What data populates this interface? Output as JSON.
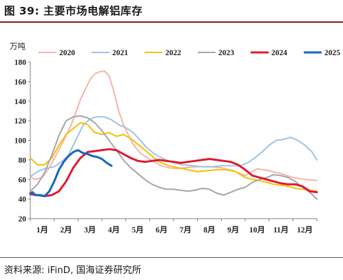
{
  "figure": {
    "title": "图 39:  主要市场电解铝库存",
    "source": "资料来源: iFinD, 国海证券研究所"
  },
  "chart_data": {
    "type": "line",
    "unit_label": "万吨",
    "ylim": [
      20,
      180
    ],
    "yticks": [
      20,
      40,
      60,
      80,
      100,
      120,
      140,
      160,
      180
    ],
    "months": [
      "1月",
      "2月",
      "3月",
      "4月",
      "5月",
      "6月",
      "7月",
      "8月",
      "9月",
      "10月",
      "11月",
      "12月"
    ],
    "xlim": [
      1,
      13
    ],
    "grid": false,
    "legend_position": "top",
    "series": [
      {
        "name": "2020",
        "color": "#f4b4a6",
        "width": 2,
        "x": [
          1,
          1.2,
          1.5,
          1.8,
          2.1,
          2.4,
          2.7,
          2.9,
          3.1,
          3.3,
          3.5,
          3.7,
          3.9,
          4.1,
          4.3,
          4.5,
          4.7,
          4.9,
          5.1,
          5.3,
          5.6,
          5.9,
          6.2,
          6.5,
          6.8,
          7.1,
          7.5,
          8.0,
          8.5,
          9.0,
          9.5,
          10.0,
          10.5,
          11.0,
          11.5,
          12.0,
          12.5,
          13.0
        ],
        "y": [
          63,
          60,
          62,
          72,
          86,
          100,
          115,
          128,
          142,
          152,
          162,
          168,
          170,
          171,
          166,
          150,
          130,
          116,
          106,
          96,
          87,
          82,
          78,
          74,
          72,
          71,
          72,
          73,
          73,
          72,
          69,
          64,
          71,
          69,
          66,
          62,
          60,
          59
        ]
      },
      {
        "name": "2021",
        "color": "#9dc3e6",
        "width": 2,
        "x": [
          1,
          1.3,
          1.6,
          2.0,
          2.3,
          2.6,
          2.9,
          3.2,
          3.5,
          3.8,
          4.1,
          4.4,
          4.7,
          5.0,
          5.3,
          5.6,
          5.9,
          6.2,
          6.6,
          7.0,
          7.4,
          7.8,
          8.2,
          8.6,
          9.0,
          9.4,
          9.8,
          10.1,
          10.4,
          10.7,
          11.0,
          11.3,
          11.6,
          11.9,
          12.2,
          12.5,
          12.8,
          13.0
        ],
        "y": [
          63,
          68,
          71,
          73,
          78,
          85,
          100,
          115,
          122,
          124,
          124,
          121,
          116,
          113,
          108,
          100,
          92,
          86,
          81,
          77,
          75,
          74,
          73,
          73,
          74,
          74,
          74,
          77,
          82,
          88,
          95,
          100,
          101,
          103,
          100,
          95,
          88,
          80
        ]
      },
      {
        "name": "2022",
        "color": "#f5c000",
        "width": 2,
        "x": [
          1,
          1.3,
          1.6,
          1.9,
          2.2,
          2.5,
          2.8,
          3.1,
          3.4,
          3.7,
          4.0,
          4.3,
          4.6,
          4.9,
          5.2,
          5.5,
          5.8,
          6.1,
          6.4,
          6.8,
          7.2,
          7.6,
          8.0,
          8.4,
          8.8,
          9.2,
          9.6,
          10.0,
          10.3,
          10.6,
          10.9,
          11.2,
          11.5,
          11.8,
          12.1,
          12.4,
          12.7,
          13.0
        ],
        "y": [
          82,
          75,
          75,
          82,
          95,
          106,
          112,
          118,
          116,
          108,
          106,
          108,
          104,
          106,
          102,
          96,
          90,
          84,
          78,
          74,
          72,
          70,
          68,
          69,
          70,
          70,
          68,
          62,
          60,
          59,
          57,
          55,
          54,
          53,
          51,
          50,
          49,
          48
        ]
      },
      {
        "name": "2023",
        "color": "#a6a6a6",
        "width": 2,
        "x": [
          1,
          1.3,
          1.6,
          1.9,
          2.2,
          2.5,
          2.8,
          3.1,
          3.4,
          3.7,
          4.0,
          4.3,
          4.6,
          4.9,
          5.2,
          5.5,
          5.8,
          6.1,
          6.4,
          6.7,
          7.0,
          7.3,
          7.6,
          7.9,
          8.2,
          8.5,
          8.8,
          9.1,
          9.4,
          9.7,
          10.0,
          10.3,
          10.6,
          10.9,
          11.2,
          11.5,
          11.8,
          12.1,
          12.4,
          12.7,
          13.0
        ],
        "y": [
          48,
          55,
          67,
          85,
          105,
          120,
          124,
          125,
          123,
          118,
          110,
          100,
          90,
          80,
          72,
          66,
          60,
          55,
          52,
          50,
          50,
          49,
          48,
          49,
          51,
          50,
          46,
          44,
          47,
          50,
          52,
          57,
          60,
          62,
          65,
          64,
          62,
          58,
          52,
          47,
          40
        ]
      },
      {
        "name": "2024",
        "color": "#e0182d",
        "width": 3,
        "x": [
          1,
          1.3,
          1.6,
          1.9,
          2.2,
          2.5,
          2.8,
          3.1,
          3.4,
          3.7,
          4.0,
          4.3,
          4.6,
          4.9,
          5.2,
          5.5,
          5.8,
          6.1,
          6.4,
          6.7,
          7.0,
          7.3,
          7.6,
          7.9,
          8.2,
          8.5,
          8.8,
          9.1,
          9.4,
          9.7,
          10.0,
          10.3,
          10.6,
          10.9,
          11.2,
          11.5,
          11.8,
          12.1,
          12.4,
          12.7,
          13.0
        ],
        "y": [
          45,
          44,
          43,
          44,
          48,
          58,
          72,
          82,
          88,
          89,
          90,
          91,
          90,
          86,
          82,
          79,
          78,
          79,
          80,
          79,
          78,
          77,
          78,
          79,
          80,
          81,
          80,
          79,
          78,
          75,
          70,
          64,
          62,
          60,
          58,
          56,
          55,
          55,
          53,
          48,
          47
        ]
      },
      {
        "name": "2025",
        "color": "#1565c0",
        "width": 3,
        "x": [
          1.0,
          1.1,
          1.2,
          1.4,
          1.6,
          1.8,
          2.0,
          2.2,
          2.4,
          2.6,
          2.8,
          3.0,
          3.2,
          3.4,
          3.6,
          3.8,
          4.0,
          4.2,
          4.4
        ],
        "y": [
          46,
          47,
          44,
          44,
          43,
          48,
          58,
          70,
          78,
          84,
          88,
          90,
          87,
          86,
          84,
          83,
          81,
          77,
          74
        ]
      }
    ]
  }
}
